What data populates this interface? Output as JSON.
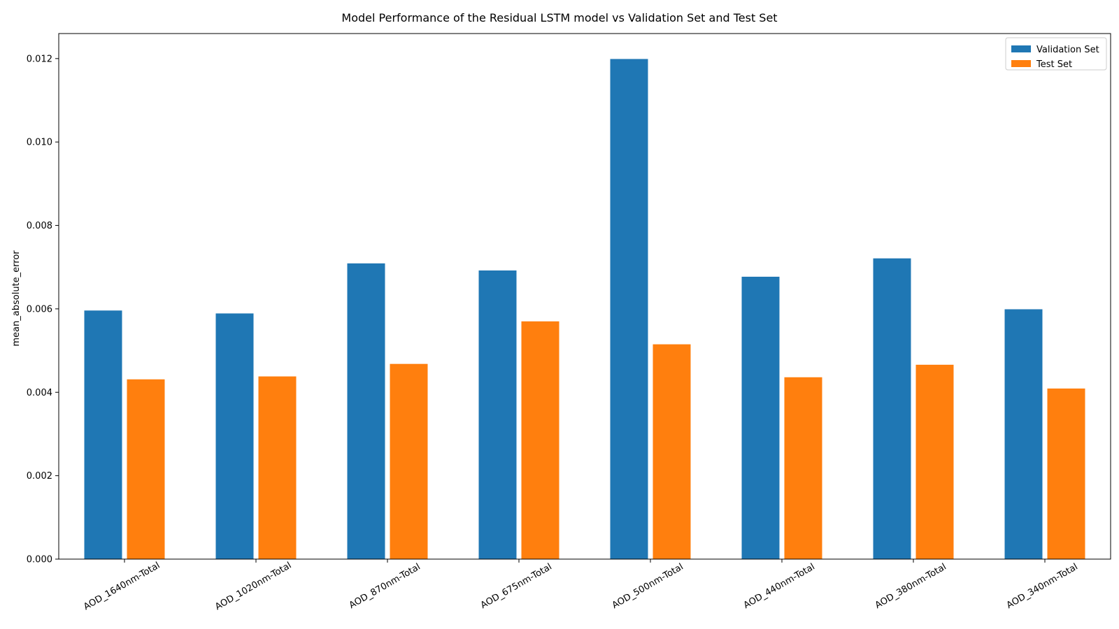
{
  "chart_data": {
    "type": "bar",
    "title": "Model Performance of the Residual LSTM model vs Validation Set and Test Set",
    "xlabel": "",
    "ylabel": "mean_absolute_error",
    "categories": [
      "AOD_1640nm-Total",
      "AOD_1020nm-Total",
      "AOD_870nm-Total",
      "AOD_675nm-Total",
      "AOD_500nm-Total",
      "AOD_440nm-Total",
      "AOD_380nm-Total",
      "AOD_340nm-Total"
    ],
    "series": [
      {
        "name": "Validation Set",
        "color": "#1f77b4",
        "values": [
          0.00596,
          0.00589,
          0.00709,
          0.00692,
          0.01199,
          0.00677,
          0.00721,
          0.00599
        ]
      },
      {
        "name": "Test Set",
        "color": "#ff7f0e",
        "values": [
          0.00431,
          0.00438,
          0.00468,
          0.0057,
          0.00515,
          0.00436,
          0.00466,
          0.00409
        ]
      }
    ],
    "ylim": [
      0,
      0.0126
    ],
    "yticks": [
      "0.000",
      "0.002",
      "0.004",
      "0.006",
      "0.008",
      "0.010",
      "0.012"
    ],
    "ytick_values": [
      0,
      0.002,
      0.004,
      0.006,
      0.008,
      0.01,
      0.012
    ],
    "grid": false,
    "legend": "top-right",
    "xtick_rotation_deg": 30
  }
}
